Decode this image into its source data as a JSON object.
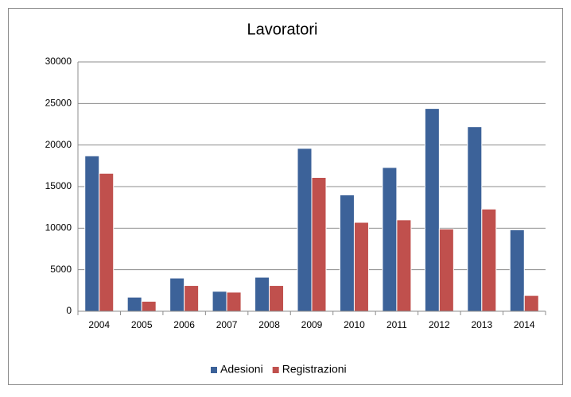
{
  "chart_data": {
    "type": "bar",
    "title": "Lavoratori",
    "categories": [
      "2004",
      "2005",
      "2006",
      "2007",
      "2008",
      "2009",
      "2010",
      "2011",
      "2012",
      "2013",
      "2014"
    ],
    "series": [
      {
        "name": "Adesioni",
        "color": "#3c6299",
        "values": [
          18700,
          1700,
          4000,
          2400,
          4100,
          19600,
          14000,
          17300,
          24400,
          22200,
          9800
        ]
      },
      {
        "name": "Registrazioni",
        "color": "#c0504d",
        "values": [
          16600,
          1200,
          3100,
          2300,
          3100,
          16100,
          10700,
          11000,
          9900,
          12300,
          1900
        ]
      }
    ],
    "ylim": [
      0,
      30000
    ],
    "yticks": [
      0,
      5000,
      10000,
      15000,
      20000,
      25000,
      30000
    ],
    "grid": true,
    "legend": "bottom"
  }
}
